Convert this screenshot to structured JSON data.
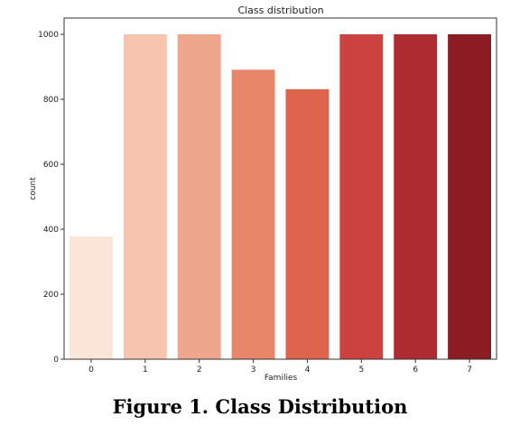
{
  "chart_data": {
    "type": "bar",
    "title": "Class distribution",
    "xlabel": "Families",
    "ylabel": "count",
    "categories": [
      "0",
      "1",
      "2",
      "3",
      "4",
      "5",
      "6",
      "7"
    ],
    "values": [
      378,
      1000,
      1000,
      891,
      831,
      1000,
      1000,
      1000
    ],
    "colors": [
      "#fbe4d8",
      "#f7c4ae",
      "#eea78c",
      "#e8866a",
      "#df644e",
      "#cb4240",
      "#ae2b30",
      "#8b1c23"
    ],
    "ylim": [
      0,
      1000
    ],
    "yticks": [
      0,
      200,
      400,
      600,
      800,
      1000
    ],
    "grid": false,
    "legend": "none"
  },
  "caption": "Figure 1. Class Distribution"
}
